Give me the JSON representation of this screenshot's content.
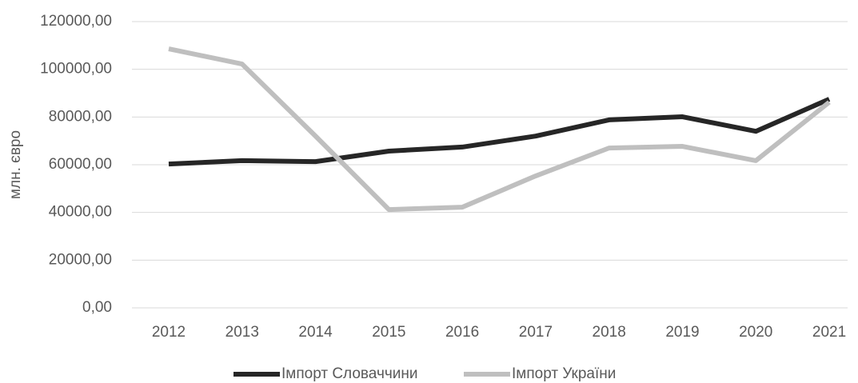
{
  "chart_data": {
    "type": "line",
    "y_label": "млн. євро",
    "categories": [
      "2012",
      "2013",
      "2014",
      "2015",
      "2016",
      "2017",
      "2018",
      "2019",
      "2020",
      "2021"
    ],
    "series": [
      {
        "name": "Імпорт Словаччини",
        "color": "#262626",
        "values": [
          60300,
          61700,
          61300,
          65700,
          67400,
          72000,
          78800,
          80100,
          74000,
          87500
        ]
      },
      {
        "name": "Імпорт України",
        "color": "#bfbfbf",
        "values": [
          108600,
          102200,
          72000,
          41200,
          42200,
          55300,
          67000,
          67700,
          61700,
          86200
        ]
      }
    ],
    "ylim": [
      0,
      120000
    ],
    "yticks": [
      {
        "value": 0,
        "label": "0,00"
      },
      {
        "value": 20000,
        "label": "20000,00"
      },
      {
        "value": 40000,
        "label": "40000,00"
      },
      {
        "value": 60000,
        "label": "60000,00"
      },
      {
        "value": 80000,
        "label": "80000,00"
      },
      {
        "value": 100000,
        "label": "100000,00"
      },
      {
        "value": 120000,
        "label": "120000,00"
      }
    ],
    "grid": true,
    "legend": "bottom"
  }
}
